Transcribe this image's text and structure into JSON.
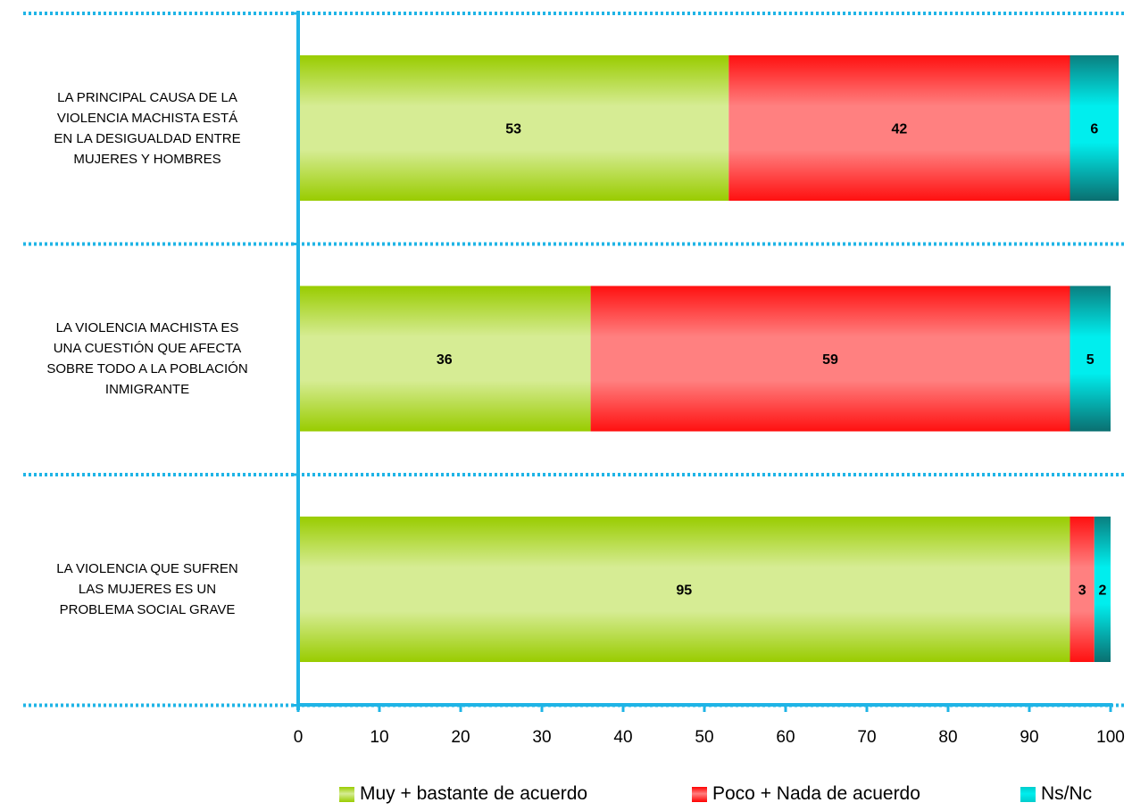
{
  "chart_data": {
    "type": "bar",
    "orientation": "horizontal",
    "stacked": true,
    "title": "",
    "xlabel": "",
    "ylabel": "",
    "xlim": [
      0,
      100
    ],
    "x_ticks": [
      0,
      10,
      20,
      30,
      40,
      50,
      60,
      70,
      80,
      90,
      100
    ],
    "categories": [
      "LA PRINCIPAL CAUSA DE LA VIOLENCIA MACHISTA ESTÁ EN LA DESIGUALDAD ENTRE MUJERES Y HOMBRES",
      "LA VIOLENCIA MACHISTA ES UNA CUESTIÓN QUE AFECTA SOBRE TODO A LA POBLACIÓN INMIGRANTE",
      "LA VIOLENCIA QUE SUFREN LAS MUJERES ES UN PROBLEMA SOCIAL GRAVE"
    ],
    "category_lines": [
      [
        "LA PRINCIPAL CAUSA DE LA",
        "VIOLENCIA MACHISTA ESTÁ",
        "EN LA DESIGUALDAD ENTRE",
        "MUJERES Y HOMBRES"
      ],
      [
        "LA VIOLENCIA MACHISTA ES",
        "UNA CUESTIÓN QUE AFECTA",
        "SOBRE TODO A LA POBLACIÓN",
        "INMIGRANTE"
      ],
      [
        "LA VIOLENCIA QUE SUFREN",
        "LAS MUJERES ES UN",
        "PROBLEMA SOCIAL GRAVE"
      ]
    ],
    "series": [
      {
        "name": "Muy + bastante de acuerdo",
        "values": [
          53,
          36,
          95
        ],
        "color": "#99cc00"
      },
      {
        "name": "Poco + Nada de acuerdo",
        "values": [
          42,
          59,
          3
        ],
        "color": "#ff0000"
      },
      {
        "name": "Ns/Nc",
        "values": [
          6,
          5,
          2
        ],
        "color": "#00cccc"
      }
    ],
    "grid": false,
    "legend_position": "bottom"
  }
}
